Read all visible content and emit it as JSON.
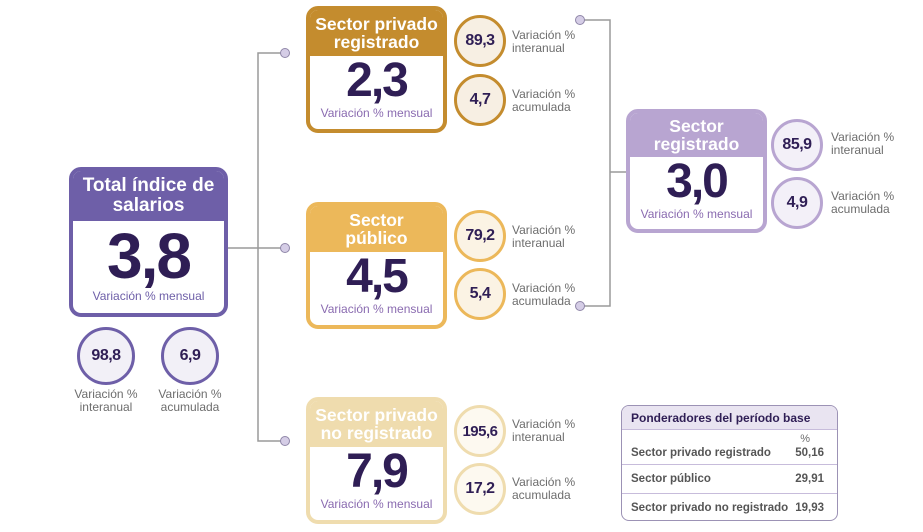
{
  "colors": {
    "total": "#6e5fa8",
    "privado_registrado": "#c48c2e",
    "publico": "#ecb85a",
    "no_registrado": "#efdcae",
    "sector_registrado": "#b8a5d1",
    "value_text": "#2f1e55",
    "connector": "#9a9a9a",
    "node": "#d5cde6"
  },
  "total": {
    "title": "Total índice de salarios",
    "monthly": "3,8",
    "monthly_label": "Variación % mensual",
    "interanual": "98,8",
    "interanual_label": "Variación % interanual",
    "acumulada": "6,9",
    "acumulada_label": "Variación % acumulada"
  },
  "sectors": [
    {
      "title": "Sector privado registrado",
      "monthly": "2,3",
      "monthly_label": "Variación % mensual",
      "interanual": "89,3",
      "interanual_label": "Variación % interanual",
      "acumulada": "4,7",
      "acumulada_label": "Variación % acumulada"
    },
    {
      "title": "Sector público",
      "monthly": "4,5",
      "monthly_label": "Variación % mensual",
      "interanual": "79,2",
      "interanual_label": "Variación % interanual",
      "acumulada": "5,4",
      "acumulada_label": "Variación % acumulada"
    },
    {
      "title": "Sector privado no registrado",
      "monthly": "7,9",
      "monthly_label": "Variación % mensual",
      "interanual": "195,6",
      "interanual_label": "Variación % interanual",
      "acumulada": "17,2",
      "acumulada_label": "Variación % acumulada"
    }
  ],
  "registrado": {
    "title": "Sector registrado",
    "monthly": "3,0",
    "monthly_label": "Variación % mensual",
    "interanual": "85,9",
    "interanual_label": "Variación % interanual",
    "acumulada": "4,9",
    "acumulada_label": "Variación % acumulada"
  },
  "ponderadores": {
    "title": "Ponderadores del período base",
    "unit": "%",
    "rows": [
      {
        "label": "Sector privado registrado",
        "value": "50,16"
      },
      {
        "label": "Sector público",
        "value": "29,91"
      },
      {
        "label": "Sector privado no registrado",
        "value": "19,93"
      }
    ]
  }
}
